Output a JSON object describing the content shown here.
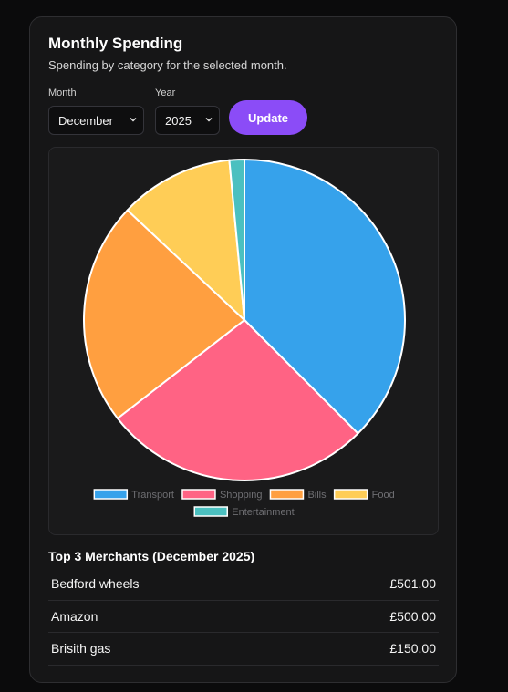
{
  "header": {
    "title": "Monthly Spending",
    "subtitle": "Spending by category for the selected month."
  },
  "controls": {
    "month_label": "Month",
    "month_value": "December",
    "year_label": "Year",
    "year_value": "2025",
    "update_label": "Update"
  },
  "chart_data": {
    "type": "pie",
    "categories": [
      "Transport",
      "Shopping",
      "Bills",
      "Food",
      "Entertainment"
    ],
    "values": [
      37.5,
      27.0,
      22.5,
      11.5,
      1.5
    ],
    "colors": [
      "#36a2eb",
      "#ff6384",
      "#ff9f40",
      "#ffcd56",
      "#4bc0c0"
    ],
    "legend": "bottom"
  },
  "merchants": {
    "title": "Top 3 Merchants (December 2025)",
    "rows": [
      {
        "name": "Bedford wheels",
        "amount": "£501.00"
      },
      {
        "name": "Amazon",
        "amount": "£500.00"
      },
      {
        "name": "Brisith gas",
        "amount": "£150.00"
      }
    ]
  }
}
